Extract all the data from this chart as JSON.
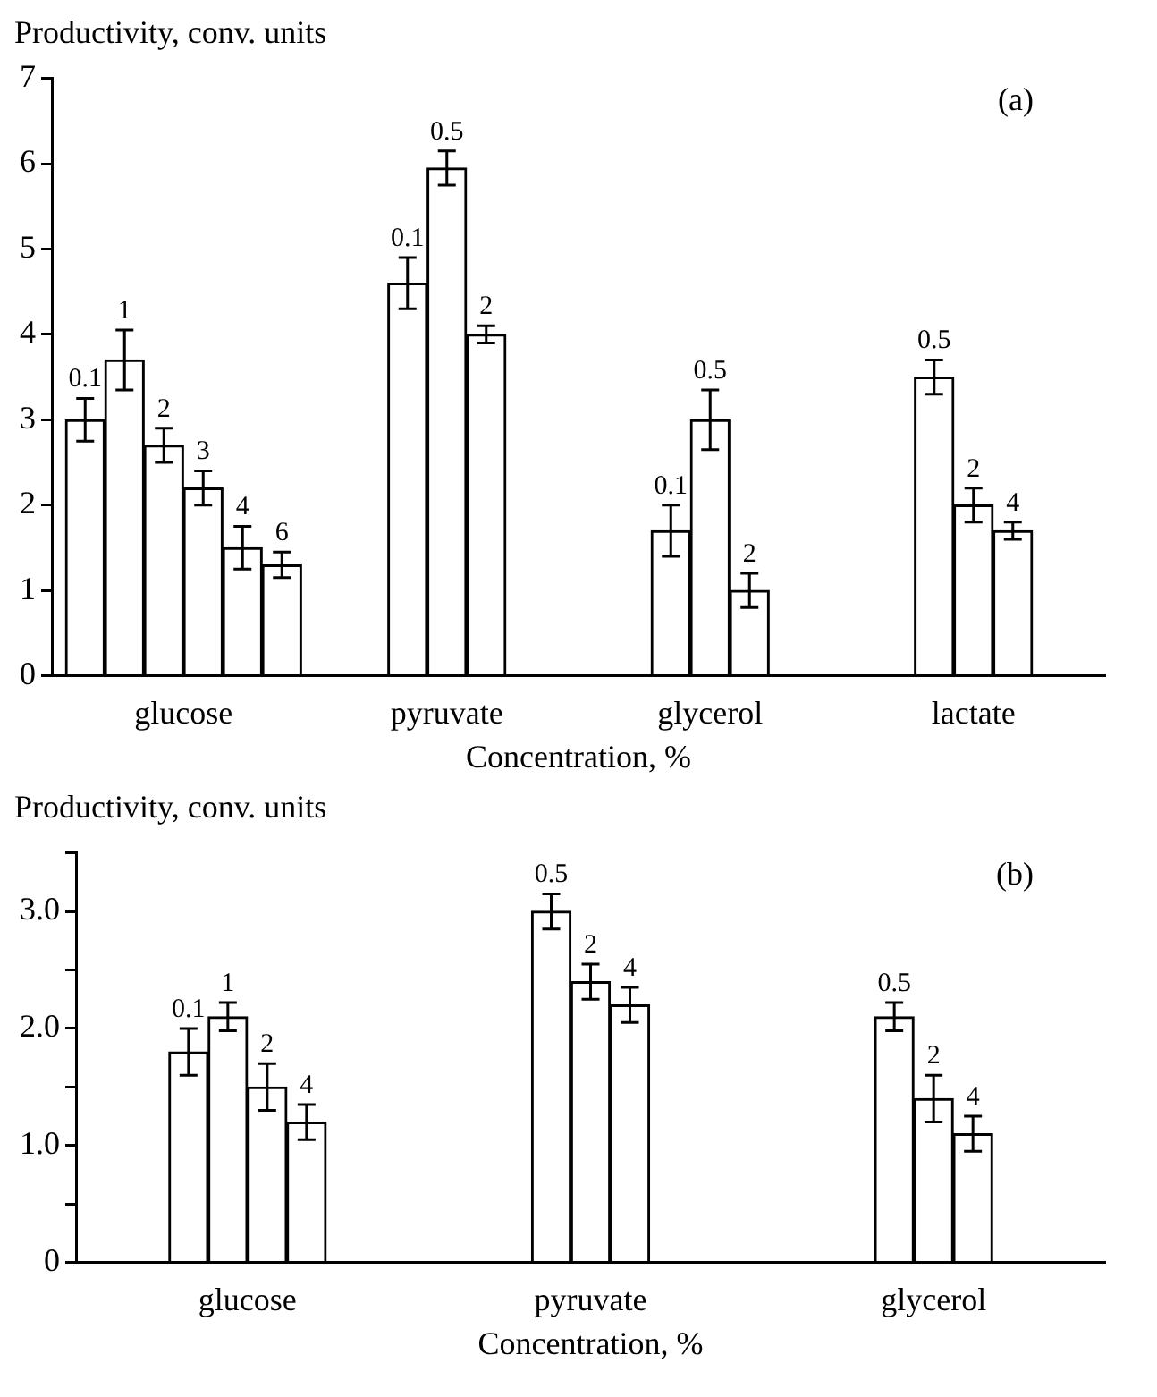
{
  "chart_data": [
    {
      "type": "bar",
      "ylabel": "Productivity, conv. units",
      "xlabel": "Concentration, %",
      "annotations": [
        "(a)",
        "0.1",
        "1",
        "2",
        "3",
        "4",
        "6",
        "0.1",
        "0.5",
        "2",
        "0.1",
        "0.5",
        "2",
        "0.5",
        "2",
        "4"
      ],
      "categories": [
        "glucose",
        "pyruvate",
        "glycerol",
        "lactate"
      ],
      "ylim": [
        0,
        7
      ],
      "yticks": [
        0,
        1,
        2,
        3,
        4,
        5,
        6,
        7
      ],
      "series": [
        {
          "color": "#ffffff",
          "values": [
            3.0,
            4.6,
            1.7,
            3.5
          ],
          "errors": [
            0.25,
            0.3,
            0.3,
            0.2
          ]
        },
        {
          "color": "#ffffff",
          "values": [
            3.7,
            5.95,
            3.0,
            2.0
          ],
          "errors": [
            0.35,
            0.2,
            0.35,
            0.2
          ]
        },
        {
          "color": "#ffffff",
          "values": [
            2.7,
            4.0,
            1.0,
            1.7
          ],
          "errors": [
            0.2,
            0.1,
            0.2,
            0.1
          ]
        },
        {
          "color": "#ffffff",
          "values": [
            2.2,
            null,
            null,
            null
          ],
          "errors": [
            0.2,
            null,
            null,
            null
          ]
        },
        {
          "color": "#ffffff",
          "values": [
            1.5,
            null,
            null,
            null
          ],
          "errors": [
            0.25,
            null,
            null,
            null
          ]
        },
        {
          "color": "#ffffff",
          "values": [
            1.3,
            null,
            null,
            null
          ],
          "errors": [
            0.15,
            null,
            null,
            null
          ]
        }
      ]
    },
    {
      "type": "bar",
      "ylabel": "Productivity, conv. units",
      "xlabel": "Concentration, %",
      "annotations": [
        "(b)",
        "0.1",
        "1",
        "2",
        "4",
        "0.5",
        "2",
        "4",
        "0.5",
        "2",
        "4"
      ],
      "categories": [
        "glucose",
        "pyruvate",
        "glycerol"
      ],
      "ylim": [
        0,
        3.5
      ],
      "yticks": [
        0,
        {
          "value": 0.5,
          "label": null
        },
        {
          "value": 1,
          "label": "1.0"
        },
        {
          "value": 1.5,
          "label": null
        },
        {
          "value": 2,
          "label": "2.0"
        },
        {
          "value": 2.5,
          "label": null
        },
        {
          "value": 3,
          "label": "3.0"
        },
        {
          "value": 3.5,
          "label": null
        }
      ],
      "series": [
        {
          "color": "#ffffff",
          "values": [
            1.8,
            3.0,
            2.1
          ],
          "errors": [
            0.2,
            0.15,
            0.12
          ]
        },
        {
          "color": "#ffffff",
          "values": [
            2.1,
            2.4,
            1.4
          ],
          "errors": [
            0.12,
            0.15,
            0.2
          ]
        },
        {
          "color": "#ffffff",
          "values": [
            1.5,
            2.2,
            1.1
          ],
          "errors": [
            0.2,
            0.15,
            0.15
          ]
        },
        {
          "color": "#ffffff",
          "values": [
            1.2,
            null,
            null
          ],
          "errors": [
            0.15,
            null,
            null
          ]
        }
      ]
    }
  ]
}
